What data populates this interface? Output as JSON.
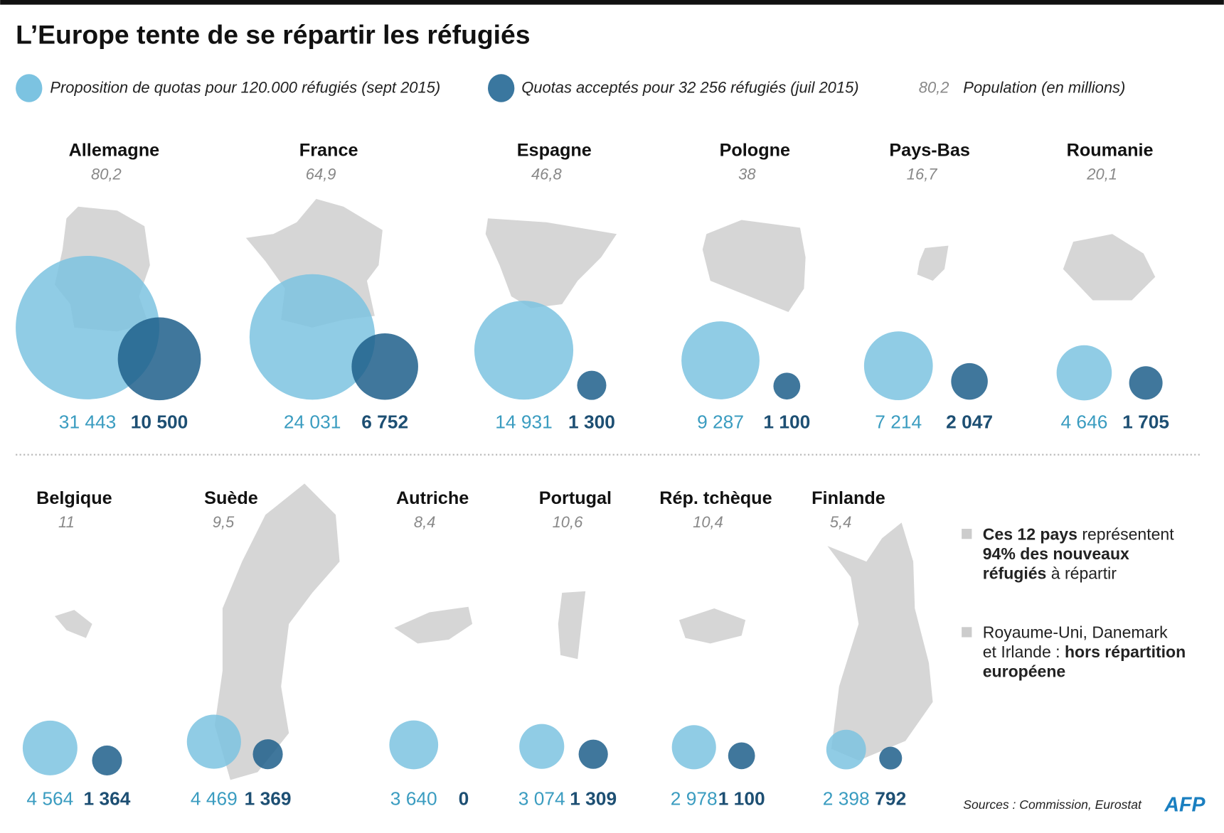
{
  "title": "L’Europe tente de se répartir les réfugiés",
  "legend": {
    "proposed": "Proposition de quotas pour 120.000 réfugiés (sept 2015)",
    "accepted": "Quotas acceptés pour 32 256 réfugiés (juil 2015)",
    "population_sample": "80,2",
    "population": "Population (en millions)"
  },
  "colors": {
    "proposed": "#7cc3e1",
    "accepted": "#1f5f8b",
    "map": "#d6d6d6"
  },
  "chart_data": {
    "type": "bubble",
    "title": "L’Europe tente de se répartir les réfugiés",
    "series": [
      {
        "name": "Proposition de quotas pour 120.000 réfugiés (sept 2015)",
        "key": "proposed"
      },
      {
        "name": "Quotas acceptés pour 32 256 réfugiés (juil 2015)",
        "key": "accepted"
      }
    ],
    "countries": [
      {
        "name": "Allemagne",
        "population": "80,2",
        "proposed": 31443,
        "proposed_label": "31 443",
        "accepted": 10500,
        "accepted_label": "10 500"
      },
      {
        "name": "France",
        "population": "64,9",
        "proposed": 24031,
        "proposed_label": "24 031",
        "accepted": 6752,
        "accepted_label": "6 752"
      },
      {
        "name": "Espagne",
        "population": "46,8",
        "proposed": 14931,
        "proposed_label": "14 931",
        "accepted": 1300,
        "accepted_label": "1 300"
      },
      {
        "name": "Pologne",
        "population": "38",
        "proposed": 9287,
        "proposed_label": "9 287",
        "accepted": 1100,
        "accepted_label": "1 100"
      },
      {
        "name": "Pays-Bas",
        "population": "16,7",
        "proposed": 7214,
        "proposed_label": "7 214",
        "accepted": 2047,
        "accepted_label": "2 047"
      },
      {
        "name": "Roumanie",
        "population": "20,1",
        "proposed": 4646,
        "proposed_label": "4 646",
        "accepted": 1705,
        "accepted_label": "1 705"
      },
      {
        "name": "Belgique",
        "population": "11",
        "proposed": 4564,
        "proposed_label": "4 564",
        "accepted": 1364,
        "accepted_label": "1 364"
      },
      {
        "name": "Suède",
        "population": "9,5",
        "proposed": 4469,
        "proposed_label": "4 469",
        "accepted": 1369,
        "accepted_label": "1 369"
      },
      {
        "name": "Autriche",
        "population": "8,4",
        "proposed": 3640,
        "proposed_label": "3 640",
        "accepted": 0,
        "accepted_label": "0"
      },
      {
        "name": "Portugal",
        "population": "10,6",
        "proposed": 3074,
        "proposed_label": "3 074",
        "accepted": 1309,
        "accepted_label": "1 309"
      },
      {
        "name": "Rép. tchèque",
        "population": "10,4",
        "proposed": 2978,
        "proposed_label": "2 978",
        "accepted": 1100,
        "accepted_label": "1 100"
      },
      {
        "name": "Finlande",
        "population": "5,4",
        "proposed": 2398,
        "proposed_label": "2 398",
        "accepted": 792,
        "accepted_label": "792"
      }
    ]
  },
  "notes": {
    "n1_b1": "Ces 12 pays",
    "n1_t1": " représentent",
    "n1_b2": "94% des nouveaux",
    "n1_b3": "réfugiés",
    "n1_t2": " à répartir",
    "n2_t1": "Royaume-Uni, Danemark",
    "n2_t2": "et Irlande : ",
    "n2_b1": "hors répartition",
    "n2_b2": "européene"
  },
  "source": "Sources : Commission, Eurostat",
  "logo": "AFP"
}
